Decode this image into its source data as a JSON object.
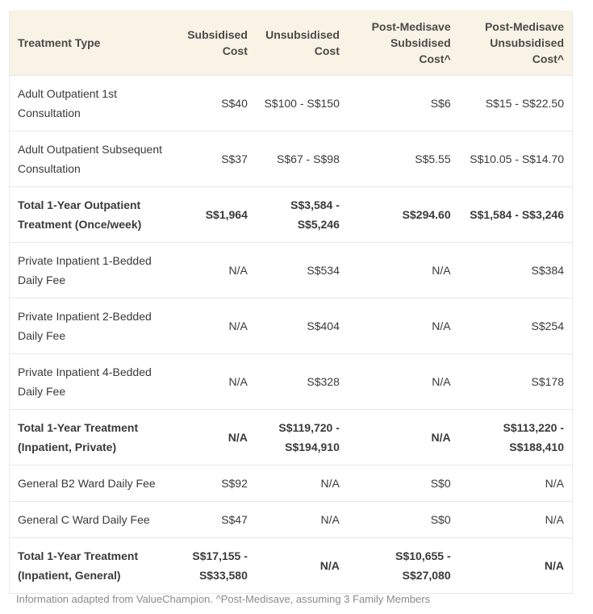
{
  "table": {
    "headers": [
      "Treatment Type",
      "Subsidised Cost",
      "Unsubsidised Cost",
      "Post-Medisave Subsidised Cost^",
      "Post-Medisave Unsubsidised Cost^"
    ],
    "rows": [
      {
        "cells": [
          "Adult Outpatient 1st Consultation",
          "S$40",
          "S$100 - S$150",
          "S$6",
          "S$15 - S$22.50"
        ],
        "total": false,
        "tall": true
      },
      {
        "cells": [
          "Adult Outpatient Subsequent Consultation",
          "S$37",
          "S$67 - S$98",
          "S$5.55",
          "S$10.05 - S$14.70"
        ],
        "total": false,
        "tall": true
      },
      {
        "cells": [
          "Total 1-Year Outpatient Treatment (Once/week)",
          "S$1,964",
          "S$3,584 - S$5,246",
          "S$294.60",
          "S$1,584 - S$3,246"
        ],
        "total": true,
        "tall": true
      },
      {
        "cells": [
          "Private Inpatient 1-Bedded Daily Fee",
          "N/A",
          "S$534",
          "N/A",
          "S$384"
        ],
        "total": false,
        "tall": true
      },
      {
        "cells": [
          "Private Inpatient 2-Bedded Daily Fee",
          "N/A",
          "S$404",
          "N/A",
          "S$254"
        ],
        "total": false,
        "tall": true
      },
      {
        "cells": [
          "Private Inpatient 4-Bedded Daily Fee",
          "N/A",
          "S$328",
          "N/A",
          "S$178"
        ],
        "total": false,
        "tall": true
      },
      {
        "cells": [
          "Total 1-Year Treatment (Inpatient, Private)",
          "N/A",
          "S$119,720 - S$194,910",
          "N/A",
          "S$113,220 - S$188,410"
        ],
        "total": true,
        "tall": true
      },
      {
        "cells": [
          "General B2 Ward Daily Fee",
          "S$92",
          "N/A",
          "S$0",
          "N/A"
        ],
        "total": false,
        "tall": false
      },
      {
        "cells": [
          "General C Ward Daily Fee",
          "S$47",
          "N/A",
          "S$0",
          "N/A"
        ],
        "total": false,
        "tall": false
      },
      {
        "cells": [
          "Total 1-Year Treatment (Inpatient, General)",
          "S$17,155 - S$33,580",
          "N/A",
          "S$10,655 - S$27,080",
          "N/A"
        ],
        "total": true,
        "tall": true
      }
    ]
  },
  "footnote": "Information adapted from ValueChampion. ^Post-Medisave, assuming 3 Family Members"
}
